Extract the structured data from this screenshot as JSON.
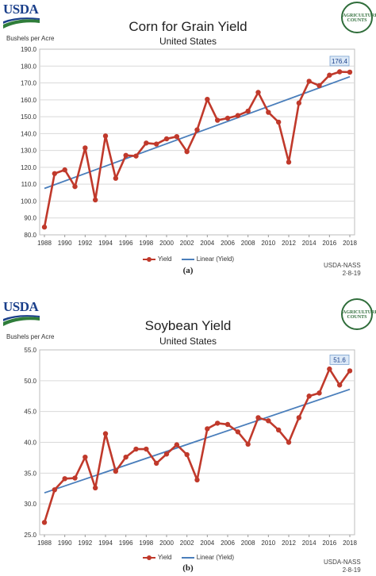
{
  "logo_text": "USDA",
  "seal_text": "AGRICULTURE COUNTS",
  "chart_data": [
    {
      "id": "a",
      "type": "line",
      "title": "Corn for Grain Yield",
      "subtitle": "United States",
      "ylabel": "Bushels per Acre",
      "ylim": [
        80.0,
        190.0
      ],
      "ytick_step": 10,
      "ytick_labels": [
        "80.0",
        "90.0",
        "100.0",
        "110.0",
        "120.0",
        "130.0",
        "140.0",
        "150.0",
        "160.0",
        "170.0",
        "180.0",
        "190.0"
      ],
      "xlim": [
        1988,
        2018
      ],
      "xtick_labels": [
        "1988",
        "1990",
        "1992",
        "1994",
        "1996",
        "1998",
        "2000",
        "2002",
        "2004",
        "2006",
        "2008",
        "2010",
        "2012",
        "2014",
        "2016",
        "2018"
      ],
      "series": [
        {
          "name": "Yield",
          "color": "#c0392b",
          "x": [
            1988,
            1989,
            1990,
            1991,
            1992,
            1993,
            1994,
            1995,
            1996,
            1997,
            1998,
            1999,
            2000,
            2001,
            2002,
            2003,
            2004,
            2005,
            2006,
            2007,
            2008,
            2009,
            2010,
            2011,
            2012,
            2013,
            2014,
            2015,
            2016,
            2017,
            2018
          ],
          "values": [
            84.6,
            116.3,
            118.5,
            108.6,
            131.5,
            100.7,
            138.6,
            113.5,
            127.1,
            126.7,
            134.4,
            133.8,
            136.9,
            138.2,
            129.3,
            142.2,
            160.3,
            147.9,
            149.1,
            150.7,
            153.3,
            164.4,
            152.6,
            146.8,
            123.1,
            158.1,
            171.0,
            168.4,
            174.6,
            176.6,
            176.4
          ]
        },
        {
          "name": "Linear (Yield)",
          "color": "#4a7ebb",
          "x": [
            1988,
            2018
          ],
          "values": [
            107.5,
            173.7
          ]
        }
      ],
      "data_label": "176.4",
      "grid": true,
      "legend": "bottom-center",
      "source": [
        "USDA-NASS",
        "2-8-19"
      ],
      "panel_label": "(a)"
    },
    {
      "id": "b",
      "type": "line",
      "title": "Soybean Yield",
      "subtitle": "United States",
      "ylabel": "Bushels per Acre",
      "ylim": [
        25.0,
        55.0
      ],
      "ytick_step": 5,
      "ytick_labels": [
        "25.0",
        "30.0",
        "35.0",
        "40.0",
        "45.0",
        "50.0",
        "55.0"
      ],
      "xlim": [
        1988,
        2018
      ],
      "xtick_labels": [
        "1988",
        "1990",
        "1992",
        "1994",
        "1996",
        "1998",
        "2000",
        "2002",
        "2004",
        "2006",
        "2008",
        "2010",
        "2012",
        "2014",
        "2016",
        "2018"
      ],
      "series": [
        {
          "name": "Yield",
          "color": "#c0392b",
          "x": [
            1988,
            1989,
            1990,
            1991,
            1992,
            1993,
            1994,
            1995,
            1996,
            1997,
            1998,
            1999,
            2000,
            2001,
            2002,
            2003,
            2004,
            2005,
            2006,
            2007,
            2008,
            2009,
            2010,
            2011,
            2012,
            2013,
            2014,
            2015,
            2016,
            2017,
            2018
          ],
          "values": [
            27.0,
            32.3,
            34.1,
            34.2,
            37.6,
            32.6,
            41.4,
            35.3,
            37.6,
            38.9,
            38.9,
            36.6,
            38.1,
            39.6,
            38.0,
            33.9,
            42.2,
            43.1,
            42.9,
            41.7,
            39.7,
            44.0,
            43.5,
            42.0,
            40.0,
            44.0,
            47.5,
            48.0,
            51.9,
            49.3,
            51.6
          ]
        },
        {
          "name": "Linear (Yield)",
          "color": "#4a7ebb",
          "x": [
            1988,
            2018
          ],
          "values": [
            31.8,
            48.6
          ]
        }
      ],
      "data_label": "51.6",
      "grid": true,
      "legend": "bottom-center",
      "source": [
        "USDA-NASS",
        "2-8-19"
      ],
      "panel_label": "(b)"
    }
  ]
}
